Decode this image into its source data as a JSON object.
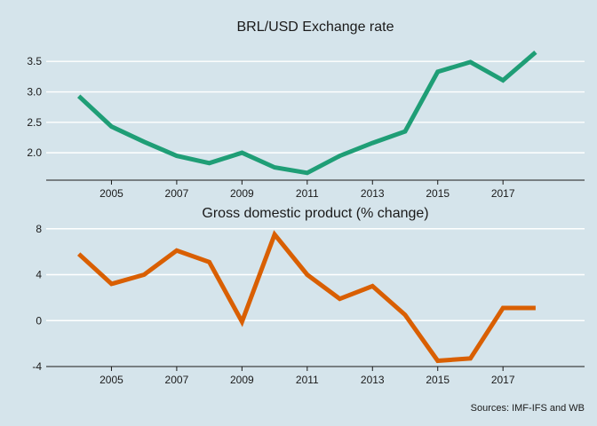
{
  "colors": {
    "background": "#d5e4eb",
    "exchange_line": "#1f9e76",
    "gdp_line": "#d95f02",
    "grid": "#ffffff",
    "text": "#1a1a1a"
  },
  "source_note": "Sources: IMF-IFS and WB",
  "chart_data": [
    {
      "type": "line",
      "title": "BRL/USD Exchange rate",
      "xlabel": "",
      "ylabel": "",
      "x": [
        2004,
        2005,
        2006,
        2007,
        2008,
        2009,
        2010,
        2011,
        2012,
        2013,
        2014,
        2015,
        2016,
        2017,
        2018
      ],
      "series": [
        {
          "name": "BRL/USD",
          "values": [
            2.93,
            2.43,
            2.18,
            1.95,
            1.83,
            2.0,
            1.76,
            1.67,
            1.95,
            2.16,
            2.35,
            3.33,
            3.49,
            3.19,
            3.65
          ]
        }
      ],
      "xlim": [
        2003.0,
        2019.5
      ],
      "ylim": [
        1.55,
        3.78
      ],
      "xticks": [
        2005,
        2007,
        2009,
        2011,
        2013,
        2015,
        2017
      ],
      "xtick_labels": [
        "2005",
        "2007",
        "2009",
        "2011",
        "2013",
        "2015",
        "2017"
      ],
      "yticks": [
        2.0,
        2.5,
        3.0,
        3.5
      ],
      "ytick_labels": [
        "2.0",
        "2.5",
        "3.0",
        "3.5"
      ],
      "grid": true
    },
    {
      "type": "line",
      "title": "Gross domestic product (% change)",
      "xlabel": "",
      "ylabel": "",
      "x": [
        2004,
        2005,
        2006,
        2007,
        2008,
        2009,
        2010,
        2011,
        2012,
        2013,
        2014,
        2015,
        2016,
        2017,
        2018
      ],
      "series": [
        {
          "name": "GDP growth",
          "values": [
            5.8,
            3.2,
            4.0,
            6.1,
            5.1,
            -0.1,
            7.5,
            4.0,
            1.9,
            3.0,
            0.5,
            -3.5,
            -3.3,
            1.1,
            1.1
          ]
        }
      ],
      "xlim": [
        2003.0,
        2019.5
      ],
      "ylim": [
        -4,
        8.6
      ],
      "xticks": [
        2005,
        2007,
        2009,
        2011,
        2013,
        2015,
        2017
      ],
      "xtick_labels": [
        "2005",
        "2007",
        "2009",
        "2011",
        "2013",
        "2015",
        "2017"
      ],
      "yticks": [
        -4,
        0,
        4,
        8
      ],
      "ytick_labels": [
        "-4",
        "0",
        "4",
        "8"
      ],
      "grid": true
    }
  ]
}
